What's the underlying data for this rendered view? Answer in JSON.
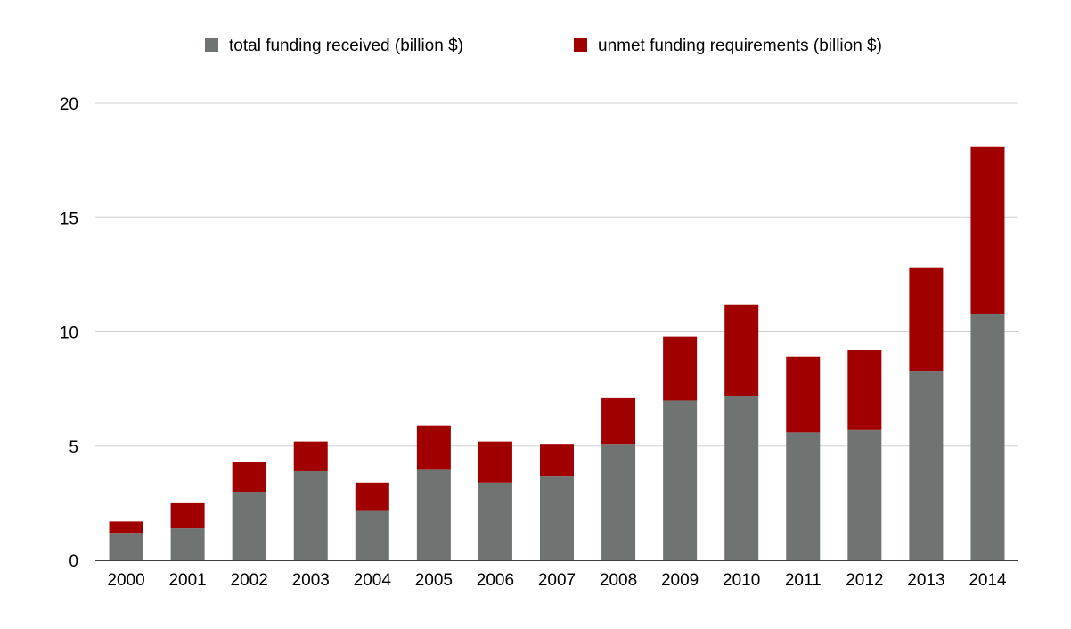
{
  "chart_data": {
    "type": "bar",
    "stacked": true,
    "title": "",
    "xlabel": "",
    "ylabel": "",
    "categories": [
      "2000",
      "2001",
      "2002",
      "2003",
      "2004",
      "2005",
      "2006",
      "2007",
      "2008",
      "2009",
      "2010",
      "2011",
      "2012",
      "2013",
      "2014"
    ],
    "series": [
      {
        "name": "total funding received (billion $)",
        "color": "#6f7372",
        "values": [
          1.2,
          1.4,
          3.0,
          3.9,
          2.2,
          4.0,
          3.4,
          3.7,
          5.1,
          7.0,
          7.2,
          5.6,
          5.7,
          8.3,
          10.8
        ]
      },
      {
        "name": "unmet funding requirements (billion $)",
        "color": "#a00000",
        "values": [
          0.5,
          1.1,
          1.3,
          1.3,
          1.2,
          1.9,
          1.8,
          1.4,
          2.0,
          2.8,
          4.0,
          3.3,
          3.5,
          4.5,
          7.3
        ]
      }
    ],
    "ylim": [
      0,
      20
    ],
    "yticks": [
      0,
      5,
      10,
      15,
      20
    ],
    "grid": true,
    "legend": "top-center"
  }
}
